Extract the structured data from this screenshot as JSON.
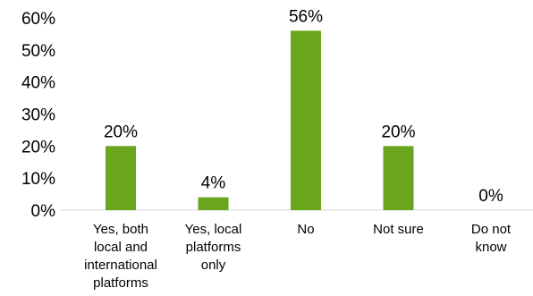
{
  "chart_data": {
    "type": "bar",
    "categories": [
      [
        "Yes, both",
        "local and",
        "international",
        "platforms"
      ],
      [
        "Yes, local",
        "platforms",
        "only"
      ],
      [
        "No"
      ],
      [
        "Not sure"
      ],
      [
        "Do not",
        "know"
      ]
    ],
    "values": [
      20,
      4,
      56,
      20,
      0
    ],
    "data_labels": [
      "20%",
      "4%",
      "56%",
      "20%",
      "0%"
    ],
    "y_ticks": [
      "0%",
      "10%",
      "20%",
      "30%",
      "40%",
      "50%",
      "60%"
    ],
    "ylim": [
      0,
      60
    ],
    "bar_color": "#6aa51e",
    "axis_color": "#d9d9d9",
    "grid": false,
    "legend": false
  }
}
